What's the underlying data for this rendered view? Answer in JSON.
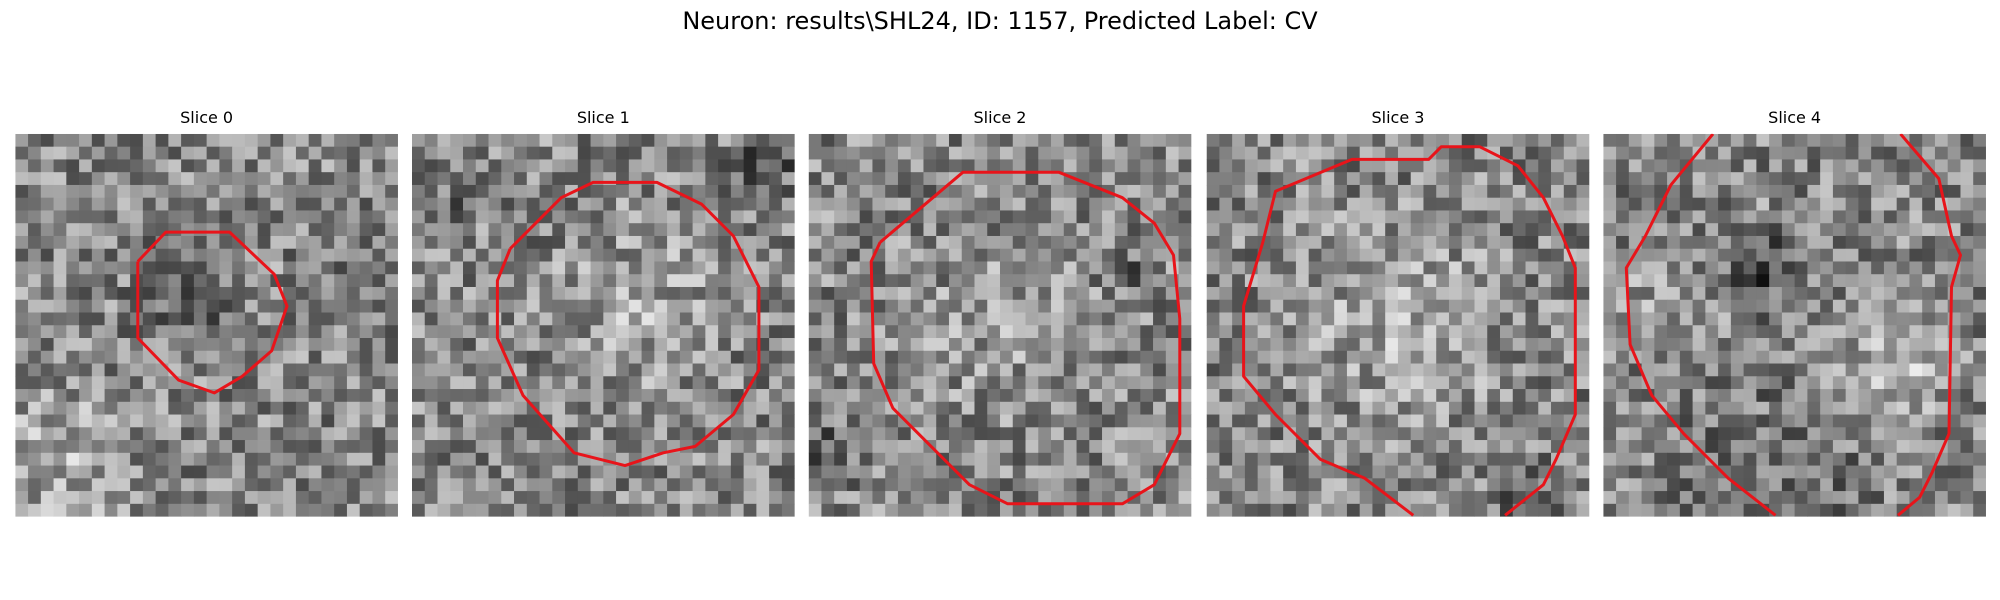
{
  "title": "Neuron: results\\SHL24, ID: 1157, Predicted Label: CV",
  "panels": [
    {
      "title": "Slice 0"
    },
    {
      "title": "Slice 1"
    },
    {
      "title": "Slice 2"
    },
    {
      "title": "Slice 3"
    },
    {
      "title": "Slice 4"
    }
  ]
}
